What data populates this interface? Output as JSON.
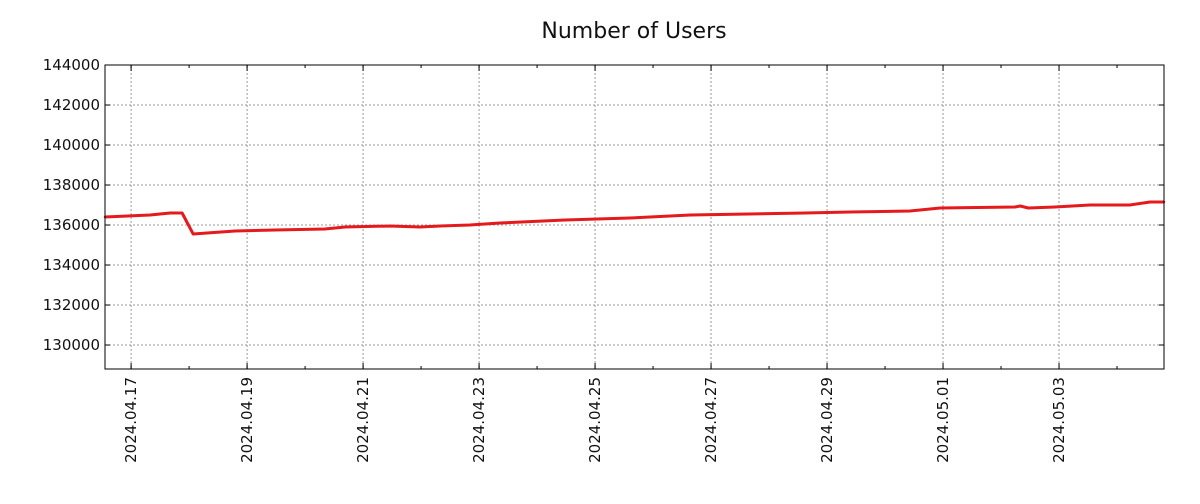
{
  "chart_data": {
    "type": "line",
    "title": "Number of Users",
    "xlabel": "",
    "ylabel": "",
    "x_unit": "days since 2024.04.17",
    "xlim": [
      -0.45,
      17.81
    ],
    "ylim": [
      128800,
      144000
    ],
    "grid": true,
    "y_ticks": [
      130000,
      132000,
      134000,
      136000,
      138000,
      140000,
      142000,
      144000
    ],
    "x_ticks": [
      {
        "day": 0,
        "label": "2024.04.17"
      },
      {
        "day": 2,
        "label": "2024.04.19"
      },
      {
        "day": 4,
        "label": "2024.04.21"
      },
      {
        "day": 6,
        "label": "2024.04.23"
      },
      {
        "day": 8,
        "label": "2024.04.25"
      },
      {
        "day": 10,
        "label": "2024.04.27"
      },
      {
        "day": 12,
        "label": "2024.04.29"
      },
      {
        "day": 14,
        "label": "2024.05.01"
      },
      {
        "day": 16,
        "label": "2024.05.03"
      }
    ],
    "series": [
      {
        "name": "Number of Users",
        "color": "#e41a1c",
        "x": [
          -0.45,
          0.33,
          0.67,
          0.88,
          1.07,
          1.79,
          2.48,
          3.34,
          3.69,
          4.47,
          4.98,
          5.33,
          5.84,
          6.36,
          7.48,
          8.6,
          9.64,
          11.62,
          12.4,
          13.43,
          13.95,
          15.24,
          15.33,
          15.47,
          15.93,
          16.53,
          17.22,
          17.57,
          17.81
        ],
        "values": [
          136400,
          136500,
          136600,
          136600,
          135550,
          135700,
          135750,
          135800,
          135900,
          135950,
          135900,
          135950,
          136000,
          136100,
          136250,
          136350,
          136500,
          136600,
          136650,
          136700,
          136850,
          136900,
          136950,
          136850,
          136900,
          137000,
          137000,
          137150,
          137150
        ]
      }
    ]
  }
}
